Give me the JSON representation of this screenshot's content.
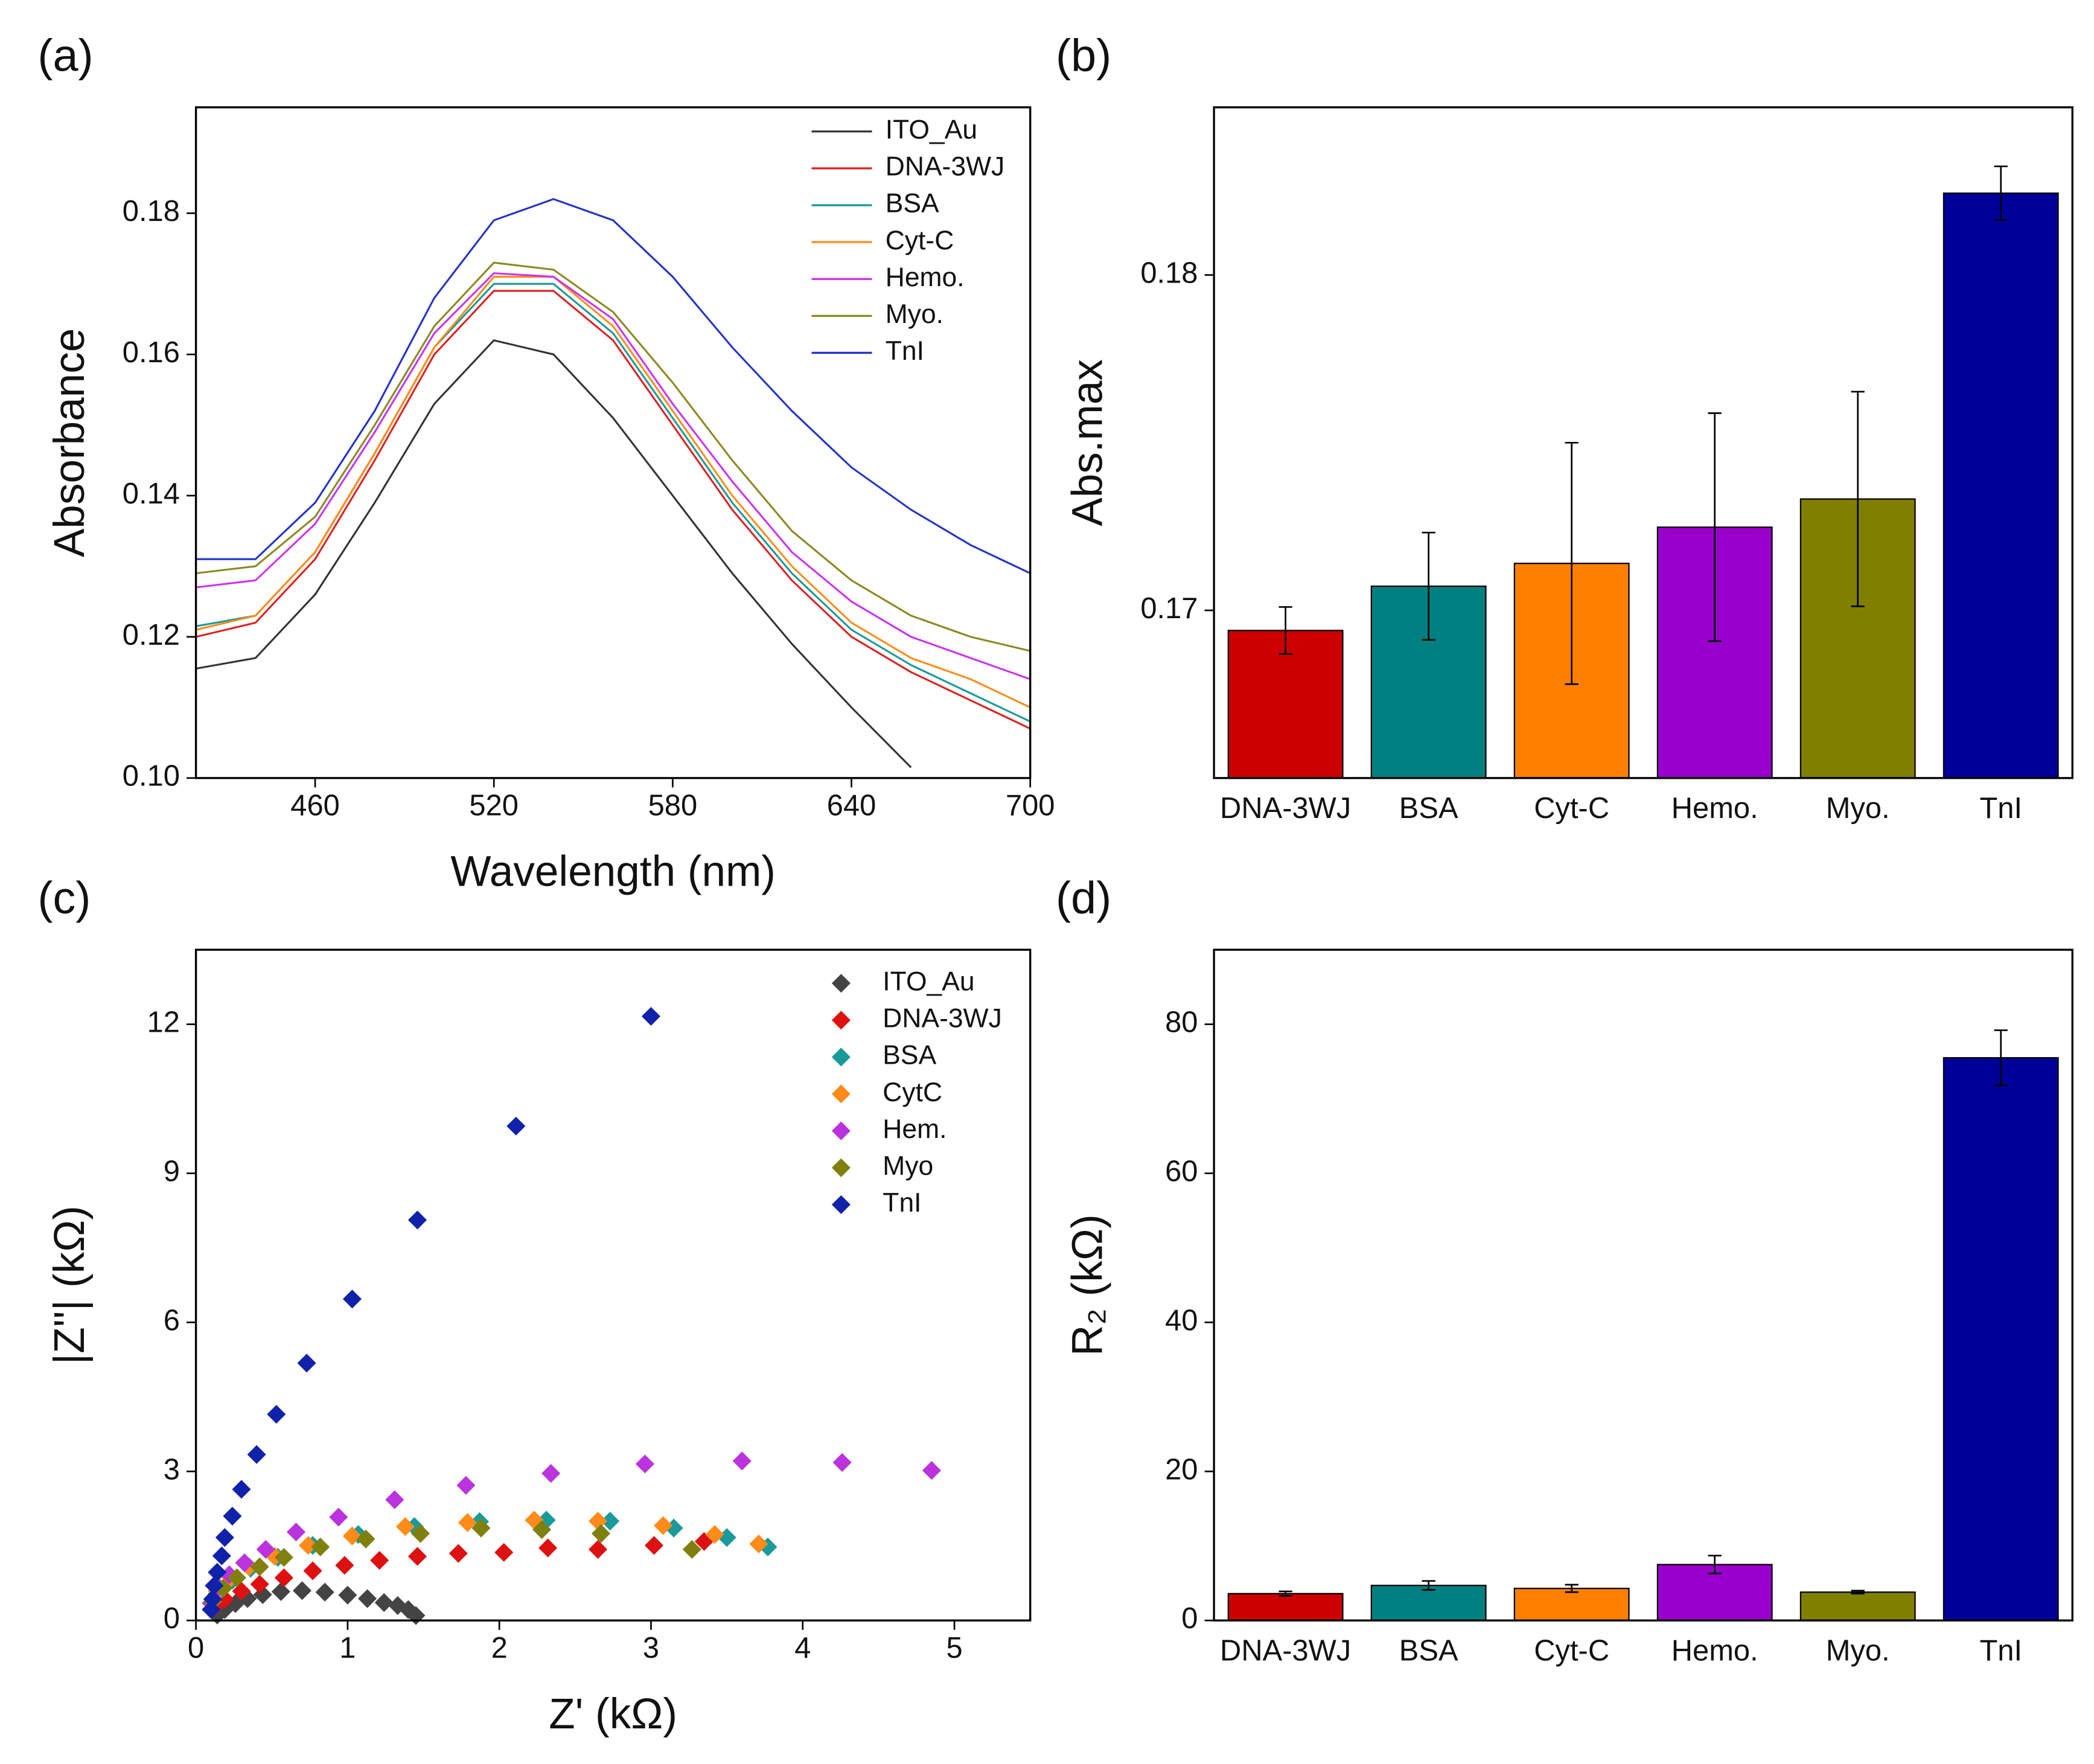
{
  "chart_data": [
    {
      "type": "line",
      "panel": "(a)",
      "x_label": "Wavelength (nm)",
      "y_label": "Absorbance",
      "x": [
        420,
        440,
        460,
        480,
        500,
        520,
        540,
        560,
        580,
        600,
        620,
        640,
        660,
        680,
        700
      ],
      "series": [
        {
          "name": "ITO_Au",
          "color": "#333333",
          "values": [
            0.1155,
            0.117,
            0.126,
            0.139,
            0.153,
            0.162,
            0.16,
            0.151,
            0.14,
            0.129,
            0.119,
            0.11,
            0.1015,
            null,
            null
          ]
        },
        {
          "name": "DNA-3WJ",
          "color": "#e02020",
          "values": [
            0.12,
            0.122,
            0.131,
            0.145,
            0.16,
            0.169,
            0.169,
            0.162,
            0.15,
            0.138,
            0.128,
            0.12,
            0.115,
            0.111,
            0.107
          ]
        },
        {
          "name": "BSA",
          "color": "#1a9a9a",
          "values": [
            0.1215,
            0.123,
            0.132,
            0.146,
            0.161,
            0.17,
            0.17,
            0.163,
            0.151,
            0.139,
            0.129,
            0.121,
            0.116,
            0.112,
            0.108
          ]
        },
        {
          "name": "Cyt-C",
          "color": "#ff8c1a",
          "values": [
            0.121,
            0.123,
            0.132,
            0.146,
            0.161,
            0.171,
            0.171,
            0.164,
            0.152,
            0.14,
            0.13,
            0.122,
            0.117,
            0.114,
            0.11
          ]
        },
        {
          "name": "Hemo.",
          "color": "#cc33ee",
          "values": [
            0.127,
            0.128,
            0.136,
            0.149,
            0.163,
            0.1715,
            0.171,
            0.165,
            0.153,
            0.142,
            0.132,
            0.125,
            0.12,
            0.117,
            0.114
          ]
        },
        {
          "name": "Myo.",
          "color": "#8a8a20",
          "values": [
            0.129,
            0.13,
            0.137,
            0.15,
            0.164,
            0.173,
            0.172,
            0.166,
            0.156,
            0.145,
            0.135,
            0.128,
            0.123,
            0.12,
            0.118
          ]
        },
        {
          "name": "TnI",
          "color": "#2233cc",
          "values": [
            0.131,
            0.131,
            0.139,
            0.152,
            0.168,
            0.179,
            0.182,
            0.179,
            0.171,
            0.161,
            0.152,
            0.144,
            0.138,
            0.133,
            0.129
          ]
        }
      ],
      "xlim": [
        420,
        700
      ],
      "xticks": [
        460,
        520,
        580,
        640,
        700
      ],
      "ylim": [
        0.1,
        0.195
      ],
      "yticks": [
        {
          "value": 0.1,
          "label": "0.10"
        },
        0.12,
        0.14,
        0.16,
        0.18
      ],
      "legend": "upper right"
    },
    {
      "type": "bar",
      "panel": "(b)",
      "y_label": "Abs.max",
      "categories": [
        "DNA-3WJ",
        "BSA",
        "Cyt-C",
        "Hemo.",
        "Myo.",
        "TnI"
      ],
      "values": [
        0.1694,
        0.17072,
        0.1714,
        0.17248,
        0.17332,
        0.18244
      ],
      "errors": [
        0.0007,
        0.0016,
        0.0036,
        0.0034,
        0.0032,
        0.0008
      ],
      "colors": [
        "#cc0000",
        "#008080",
        "#ff8000",
        "#9900cc",
        "#808000",
        "#000099"
      ],
      "ylim": [
        0.165,
        0.185
      ],
      "yticks": [
        0.17,
        0.18
      ]
    },
    {
      "type": "scatter",
      "panel": "(c)",
      "x_label": "Z' (kΩ)",
      "y_label": "|Z''| (kΩ)",
      "series": [
        {
          "name": "ITO_Au",
          "color": "#444444",
          "x": [
            1.45,
            1.4,
            1.33,
            1.24,
            1.13,
            1.0,
            0.85,
            0.7,
            0.56,
            0.44,
            0.34,
            0.26,
            0.19,
            0.14
          ],
          "values": [
            0.1,
            0.22,
            0.3,
            0.36,
            0.44,
            0.51,
            0.57,
            0.6,
            0.58,
            0.52,
            0.44,
            0.34,
            0.22,
            0.11
          ]
        },
        {
          "name": "DNA-3WJ",
          "color": "#dd1111",
          "x": [
            3.35,
            3.02,
            2.65,
            2.32,
            2.03,
            1.73,
            1.46,
            1.21,
            0.98,
            0.77,
            0.58,
            0.42,
            0.3,
            0.19,
            0.12
          ],
          "values": [
            1.59,
            1.51,
            1.43,
            1.46,
            1.37,
            1.35,
            1.29,
            1.21,
            1.11,
            1.0,
            0.86,
            0.73,
            0.59,
            0.43,
            0.27
          ]
        },
        {
          "name": "BSA",
          "color": "#1a9a9a",
          "x": [
            3.77,
            3.5,
            3.15,
            2.73,
            2.31,
            1.87,
            1.44,
            1.07,
            0.77,
            0.54,
            0.36,
            0.24,
            0.14
          ],
          "values": [
            1.48,
            1.67,
            1.86,
            2.0,
            2.02,
            1.99,
            1.89,
            1.73,
            1.51,
            1.27,
            1.05,
            0.81,
            0.54
          ]
        },
        {
          "name": "CytC",
          "color": "#ff8c1a",
          "x": [
            3.71,
            3.42,
            3.08,
            2.65,
            2.23,
            1.79,
            1.38,
            1.03,
            0.74,
            0.52,
            0.35,
            0.23,
            0.14
          ],
          "values": [
            1.54,
            1.73,
            1.91,
            2.0,
            2.02,
            1.97,
            1.89,
            1.7,
            1.51,
            1.29,
            1.08,
            0.86,
            0.59
          ]
        },
        {
          "name": "Hem.",
          "color": "#bb33dd",
          "x": [
            4.85,
            4.26,
            3.6,
            2.96,
            2.34,
            1.78,
            1.31,
            0.94,
            0.66,
            0.46,
            0.32,
            0.22,
            0.15,
            0.1
          ],
          "values": [
            3.02,
            3.18,
            3.21,
            3.15,
            2.96,
            2.72,
            2.43,
            2.08,
            1.78,
            1.43,
            1.16,
            0.92,
            0.67,
            0.35
          ]
        },
        {
          "name": "Myo",
          "color": "#808010",
          "x": [
            3.27,
            2.67,
            2.28,
            1.88,
            1.48,
            1.12,
            0.82,
            0.58,
            0.42,
            0.27,
            0.18,
            0.11
          ],
          "values": [
            1.43,
            1.75,
            1.83,
            1.86,
            1.75,
            1.64,
            1.48,
            1.27,
            1.08,
            0.86,
            0.65,
            0.38
          ]
        },
        {
          "name": "TnI",
          "color": "#1122aa",
          "x": [
            3.0,
            2.11,
            1.46,
            1.03,
            0.73,
            0.53,
            0.4,
            0.3,
            0.24,
            0.19,
            0.17,
            0.14,
            0.12,
            0.11,
            0.1
          ],
          "values": [
            12.16,
            9.95,
            8.06,
            6.47,
            5.18,
            4.15,
            3.34,
            2.64,
            2.1,
            1.67,
            1.3,
            0.97,
            0.7,
            0.43,
            0.22
          ]
        }
      ],
      "xlim": [
        0,
        5.5
      ],
      "xticks": [
        0,
        1,
        2,
        3,
        4,
        5
      ],
      "ylim": [
        0,
        13.5
      ],
      "yticks": [
        0,
        3,
        6,
        9,
        12
      ],
      "legend": "upper right"
    },
    {
      "type": "bar",
      "panel": "(d)",
      "y_label": "R₂ (kΩ)",
      "categories": [
        "DNA-3WJ",
        "BSA",
        "Cyt-C",
        "Hemo.",
        "Myo.",
        "TnI"
      ],
      "values": [
        3.6,
        4.7,
        4.3,
        7.5,
        3.8,
        75.5
      ],
      "errors": [
        0.3,
        0.6,
        0.5,
        1.2,
        0.2,
        3.7
      ],
      "colors": [
        "#cc0000",
        "#008080",
        "#ff8000",
        "#9900cc",
        "#808000",
        "#000099"
      ],
      "ylim": [
        0,
        90
      ],
      "yticks": [
        0,
        20,
        40,
        60,
        80
      ]
    }
  ]
}
